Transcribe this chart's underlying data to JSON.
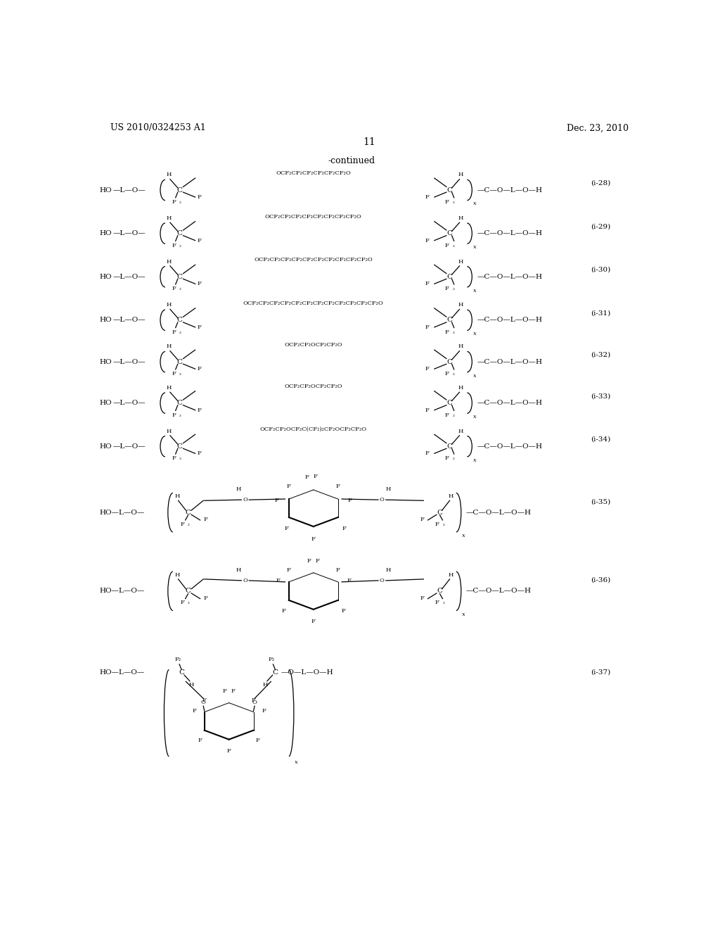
{
  "background_color": "#ffffff",
  "page_number": "11",
  "left_header": "US 2010/0324253 A1",
  "right_header": "Dec. 23, 2010",
  "continued_text": "-continued",
  "chain_texts": [
    "OCF₂CF₂CF₂CF₂CF₂CF₂O",
    "OCF₂CF₂CF₂CF₂CF₂CF₂CF₂CF₂O",
    "OCF₂CF₂CF₂CF₂CF₂CF₂CF₂CF₂CF₂CF₂O",
    "OCF₂CF₂CF₂CF₂CF₂CF₂CF₂CF₂CF₂CF₂CF₂CF₂O",
    "OCF₂CF₂OCF₂CF₂O",
    "OCF₂CF₂OCF₂CF₂O",
    "OCF₂CF₂OCF₂C(CF₂)₂CF₂OCF₂CF₂O"
  ],
  "labels": [
    "(i-28)",
    "(i-29)",
    "(i-30)",
    "(i-31)",
    "(i-32)",
    "(i-33)",
    "(i-34)",
    "(i-35)",
    "(i-36)",
    "(i-37)"
  ],
  "structure_y": [
    11.75,
    10.95,
    10.15,
    9.35,
    8.58,
    7.82,
    7.02,
    5.8,
    4.35,
    2.3
  ]
}
